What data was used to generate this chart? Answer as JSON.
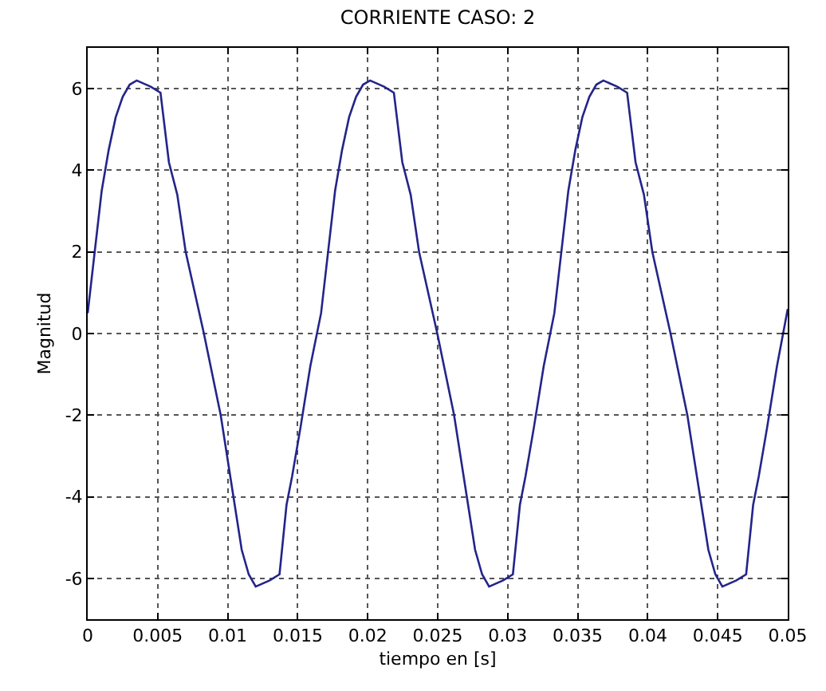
{
  "chart_data": {
    "type": "line",
    "title": "CORRIENTE CASO: 2",
    "xlabel": "tiempo en [s]",
    "ylabel": "Magnitud",
    "xlim": [
      0,
      0.05
    ],
    "xticks": [
      0,
      0.005,
      0.01,
      0.015,
      0.02,
      0.025,
      0.03,
      0.035,
      0.04,
      0.045,
      0.05
    ],
    "ylim": [
      -7,
      7
    ],
    "yticks": [
      -6,
      -4,
      -2,
      0,
      2,
      4,
      6
    ],
    "grid": true,
    "marker": "none",
    "line_style": "solid",
    "series": [
      {
        "color": "#24248a",
        "x": [
          0,
          0.0005,
          0.001,
          0.0015,
          0.002,
          0.0025,
          0.003,
          0.0035,
          0.0045,
          0.0052,
          0.0058,
          0.0064,
          0.007,
          0.0083,
          0.0095,
          0.0105,
          0.011,
          0.0115,
          0.012,
          0.013,
          0.0137,
          0.0142,
          0.0146,
          0.0152,
          0.0159,
          0.01667,
          0.01717,
          0.01767,
          0.01817,
          0.01867,
          0.01917,
          0.01967,
          0.02017,
          0.02117,
          0.02187,
          0.02247,
          0.02307,
          0.02367,
          0.02497,
          0.02617,
          0.02717,
          0.02767,
          0.02817,
          0.02867,
          0.02967,
          0.03037,
          0.03087,
          0.03127,
          0.03187,
          0.03257,
          0.03333,
          0.03383,
          0.03433,
          0.03483,
          0.03533,
          0.03583,
          0.03633,
          0.03683,
          0.03783,
          0.03853,
          0.03913,
          0.03973,
          0.04033,
          0.04163,
          0.04283,
          0.04383,
          0.04433,
          0.04483,
          0.04533,
          0.04633,
          0.04703,
          0.04753,
          0.04793,
          0.04853,
          0.04923,
          0.05
        ],
        "values": [
          0.5,
          2.0,
          3.5,
          4.5,
          5.3,
          5.8,
          6.1,
          6.2,
          6.05,
          5.9,
          4.2,
          3.4,
          2.0,
          0,
          -2,
          -4.2,
          -5.3,
          -5.9,
          -6.2,
          -6.05,
          -5.9,
          -4.2,
          -3.5,
          -2.3,
          -0.8,
          0.5,
          2.0,
          3.5,
          4.5,
          5.3,
          5.8,
          6.1,
          6.2,
          6.05,
          5.9,
          4.2,
          3.4,
          2.0,
          0,
          -2,
          -4.2,
          -5.3,
          -5.9,
          -6.2,
          -6.05,
          -5.9,
          -4.2,
          -3.5,
          -2.3,
          -0.8,
          0.5,
          2.0,
          3.5,
          4.5,
          5.3,
          5.8,
          6.1,
          6.2,
          6.05,
          5.9,
          4.2,
          3.4,
          2.0,
          0,
          -2,
          -4.2,
          -5.3,
          -5.9,
          -6.2,
          -6.05,
          -5.9,
          -4.2,
          -3.5,
          -2.3,
          -0.8,
          0.6
        ]
      }
    ]
  }
}
